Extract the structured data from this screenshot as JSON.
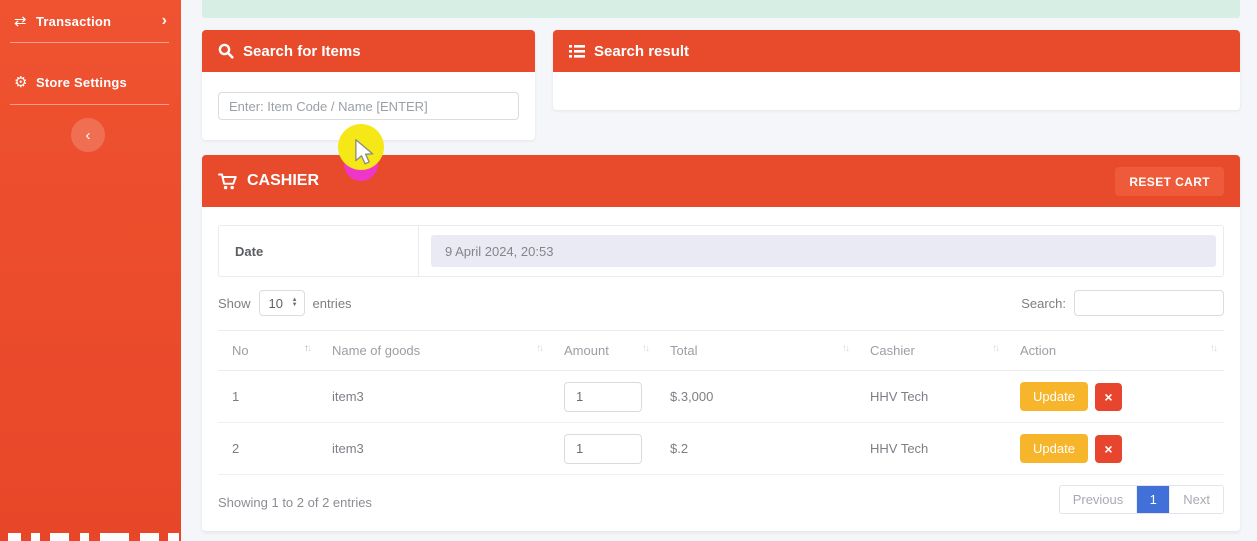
{
  "sidebar": {
    "items": [
      {
        "label": "Transaction",
        "icon": "⇄",
        "chevron": "›"
      },
      {
        "label": "Store Settings",
        "icon": "⚙",
        "chevron": ""
      }
    ],
    "collapse_chevron": "‹"
  },
  "search_panel": {
    "title": "Search for Items",
    "placeholder": "Enter: Item Code / Name [ENTER]"
  },
  "result_panel": {
    "title": "Search result"
  },
  "cashier": {
    "title": "CASHIER",
    "reset_cart_label": "RESET CART",
    "date_label": "Date",
    "date_value": "9 April 2024, 20:53",
    "length_menu": {
      "show": "Show",
      "value": "10",
      "entries": "entries"
    },
    "search_label": "Search:",
    "table": {
      "columns": [
        "No",
        "Name of goods",
        "Amount",
        "Total",
        "Cashier",
        "Action"
      ],
      "rows": [
        {
          "no": "1",
          "name": "item3",
          "amount": "1",
          "total": "$.3,000",
          "cashier": "HHV Tech"
        },
        {
          "no": "2",
          "name": "item3",
          "amount": "1",
          "total": "$.2",
          "cashier": "HHV Tech"
        }
      ],
      "update_label": "Update",
      "delete_label": "×"
    },
    "info_text": "Showing 1 to 2 of 2 entries",
    "pagination": {
      "previous": "Previous",
      "current": "1",
      "next": "Next"
    }
  },
  "colors": {
    "accent_red": "#e74b2c",
    "update_yellow": "#f7b52b",
    "delete_red": "#e8452e",
    "active_page_blue": "#4170d8",
    "alert_mint": "#d7eee5",
    "date_field_bg": "#e9eaf3"
  }
}
